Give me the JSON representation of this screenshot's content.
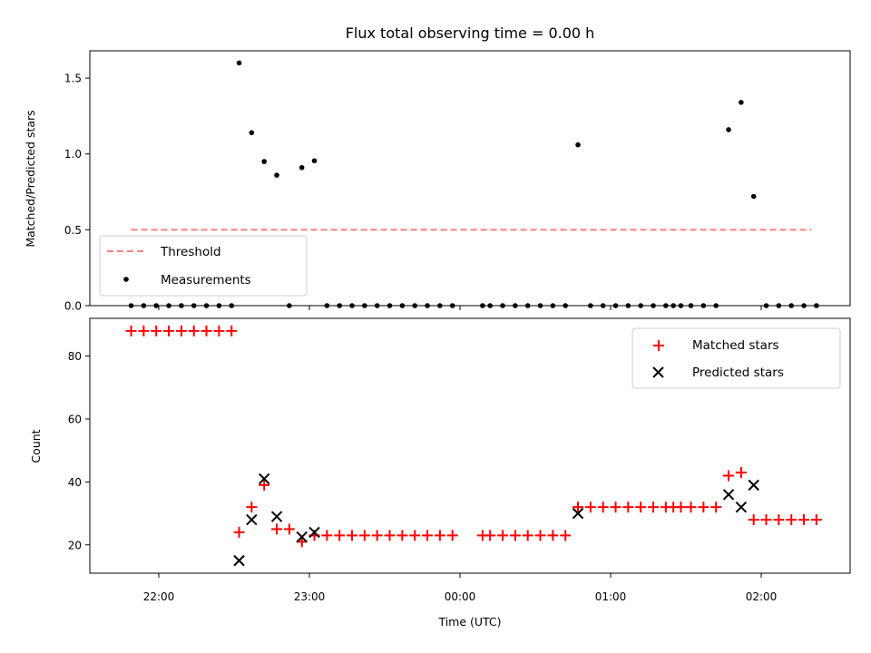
{
  "figure": {
    "title": "Flux total observing time = 0.00 h"
  },
  "chart_data": [
    {
      "type": "scatter",
      "ylabel": "Matched/Predicted stars",
      "xlabel": "",
      "ylim": [
        0,
        1.68
      ],
      "yticks": [
        {
          "v": 0,
          "label": "0.0"
        },
        {
          "v": 0.5,
          "label": "0.5"
        },
        {
          "v": 1,
          "label": "1.0"
        },
        {
          "v": 1.5,
          "label": "1.5"
        }
      ],
      "grid": false,
      "legend_position": "lower-left",
      "threshold": {
        "name": "Threshold",
        "value": 0.5,
        "x_start": "21:49",
        "x_end": "02:20",
        "color": "#ff7f7f"
      },
      "series": [
        {
          "name": "Measurements",
          "color": "#000000",
          "marker": "dot",
          "points": [
            [
              "21:49",
              0
            ],
            [
              "21:54",
              0
            ],
            [
              "21:59",
              0
            ],
            [
              "22:04",
              0
            ],
            [
              "22:09",
              0
            ],
            [
              "22:14",
              0
            ],
            [
              "22:19",
              0
            ],
            [
              "22:24",
              0
            ],
            [
              "22:29",
              0
            ],
            [
              "22:32",
              1.6
            ],
            [
              "22:37",
              1.14
            ],
            [
              "22:42",
              0.95
            ],
            [
              "22:47",
              0.86
            ],
            [
              "22:52",
              0
            ],
            [
              "22:57",
              0.91
            ],
            [
              "23:02",
              0.955
            ],
            [
              "23:07",
              0
            ],
            [
              "23:12",
              0
            ],
            [
              "23:17",
              0
            ],
            [
              "23:22",
              0
            ],
            [
              "23:27",
              0
            ],
            [
              "23:32",
              0
            ],
            [
              "23:37",
              0
            ],
            [
              "23:42",
              0
            ],
            [
              "23:47",
              0
            ],
            [
              "23:52",
              0
            ],
            [
              "23:57",
              0
            ],
            [
              "00:09",
              0
            ],
            [
              "00:12",
              0
            ],
            [
              "00:17",
              0
            ],
            [
              "00:22",
              0
            ],
            [
              "00:27",
              0
            ],
            [
              "00:32",
              0
            ],
            [
              "00:37",
              0
            ],
            [
              "00:42",
              0
            ],
            [
              "00:47",
              1.06
            ],
            [
              "00:52",
              0
            ],
            [
              "00:57",
              0
            ],
            [
              "01:02",
              0
            ],
            [
              "01:07",
              0
            ],
            [
              "01:12",
              0
            ],
            [
              "01:17",
              0
            ],
            [
              "01:22",
              0
            ],
            [
              "01:25",
              0
            ],
            [
              "01:28",
              0
            ],
            [
              "01:32",
              0
            ],
            [
              "01:37",
              0
            ],
            [
              "01:42",
              0
            ],
            [
              "01:47",
              1.16
            ],
            [
              "01:52",
              1.34
            ],
            [
              "01:57",
              0.72
            ],
            [
              "02:02",
              0
            ],
            [
              "02:07",
              0
            ],
            [
              "02:12",
              0
            ],
            [
              "02:17",
              0
            ],
            [
              "02:22",
              0
            ]
          ]
        }
      ]
    },
    {
      "type": "scatter",
      "ylabel": "Count",
      "xlabel": "Time (UTC)",
      "ylim": [
        11,
        92
      ],
      "yticks": [
        {
          "v": 20,
          "label": "20"
        },
        {
          "v": 40,
          "label": "40"
        },
        {
          "v": 60,
          "label": "60"
        },
        {
          "v": 80,
          "label": "80"
        }
      ],
      "xticks": [
        "22:00",
        "23:00",
        "00:00",
        "01:00",
        "02:00"
      ],
      "grid": false,
      "legend_position": "top-right",
      "series": [
        {
          "name": "Matched stars",
          "color": "#ff0000",
          "marker": "plus",
          "points": [
            [
              "21:49",
              88
            ],
            [
              "21:54",
              88
            ],
            [
              "21:59",
              88
            ],
            [
              "22:04",
              88
            ],
            [
              "22:09",
              88
            ],
            [
              "22:14",
              88
            ],
            [
              "22:19",
              88
            ],
            [
              "22:24",
              88
            ],
            [
              "22:29",
              88
            ],
            [
              "22:32",
              24
            ],
            [
              "22:37",
              32
            ],
            [
              "22:42",
              39
            ],
            [
              "22:47",
              25
            ],
            [
              "22:52",
              25
            ],
            [
              "22:57",
              21
            ],
            [
              "23:02",
              23
            ],
            [
              "23:07",
              23
            ],
            [
              "23:12",
              23
            ],
            [
              "23:17",
              23
            ],
            [
              "23:22",
              23
            ],
            [
              "23:27",
              23
            ],
            [
              "23:32",
              23
            ],
            [
              "23:37",
              23
            ],
            [
              "23:42",
              23
            ],
            [
              "23:47",
              23
            ],
            [
              "23:52",
              23
            ],
            [
              "23:57",
              23
            ],
            [
              "00:09",
              23
            ],
            [
              "00:12",
              23
            ],
            [
              "00:17",
              23
            ],
            [
              "00:22",
              23
            ],
            [
              "00:27",
              23
            ],
            [
              "00:32",
              23
            ],
            [
              "00:37",
              23
            ],
            [
              "00:42",
              23
            ],
            [
              "00:47",
              32
            ],
            [
              "00:52",
              32
            ],
            [
              "00:57",
              32
            ],
            [
              "01:02",
              32
            ],
            [
              "01:07",
              32
            ],
            [
              "01:12",
              32
            ],
            [
              "01:17",
              32
            ],
            [
              "01:22",
              32
            ],
            [
              "01:25",
              32
            ],
            [
              "01:28",
              32
            ],
            [
              "01:32",
              32
            ],
            [
              "01:37",
              32
            ],
            [
              "01:42",
              32
            ],
            [
              "01:47",
              42
            ],
            [
              "01:52",
              43
            ],
            [
              "01:57",
              28
            ],
            [
              "02:02",
              28
            ],
            [
              "02:07",
              28
            ],
            [
              "02:12",
              28
            ],
            [
              "02:17",
              28
            ],
            [
              "02:22",
              28
            ]
          ]
        },
        {
          "name": "Predicted stars",
          "color": "#000000",
          "marker": "x",
          "points": [
            [
              "22:32",
              15
            ],
            [
              "22:37",
              28
            ],
            [
              "22:42",
              41
            ],
            [
              "22:47",
              29
            ],
            [
              "22:57",
              22.5
            ],
            [
              "23:02",
              24
            ],
            [
              "00:47",
              30
            ],
            [
              "01:47",
              36
            ],
            [
              "01:52",
              32
            ],
            [
              "01:57",
              39
            ]
          ]
        }
      ]
    }
  ]
}
